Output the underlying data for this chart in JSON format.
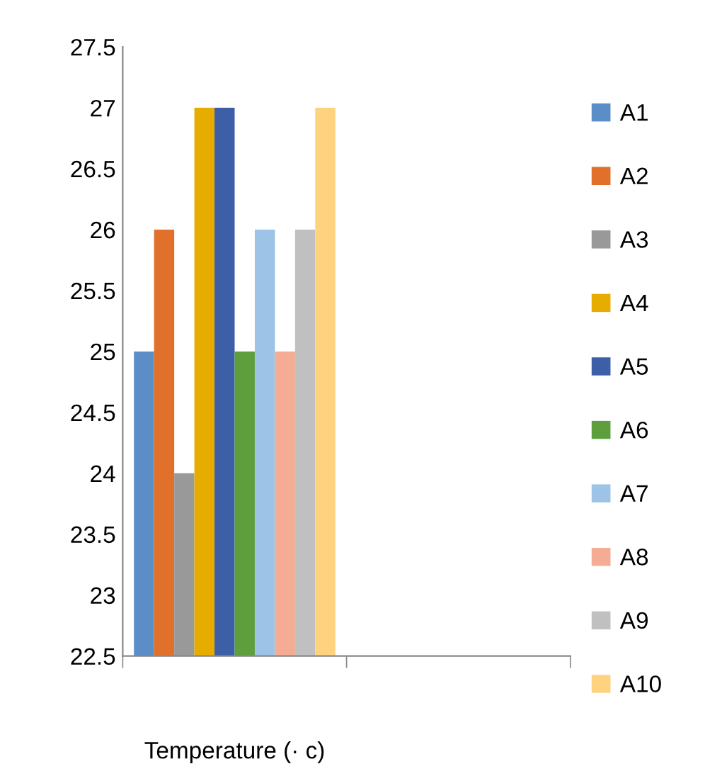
{
  "chart_data": {
    "type": "bar",
    "xlabel": "Temperature (· c)",
    "categories": [
      null,
      null
    ],
    "series": [
      {
        "name": "A1",
        "color": "#5b8ec6",
        "values": [
          25,
          null
        ]
      },
      {
        "name": "A2",
        "color": "#e0702a",
        "values": [
          26,
          null
        ]
      },
      {
        "name": "A3",
        "color": "#999999",
        "values": [
          24,
          null
        ]
      },
      {
        "name": "A4",
        "color": "#e6ac00",
        "values": [
          27,
          null
        ]
      },
      {
        "name": "A5",
        "color": "#3d5fa8",
        "values": [
          27,
          null
        ]
      },
      {
        "name": "A6",
        "color": "#5e9e3c",
        "values": [
          25,
          null
        ]
      },
      {
        "name": "A7",
        "color": "#9dc3e6",
        "values": [
          26,
          null
        ]
      },
      {
        "name": "A8",
        "color": "#f4ac94",
        "values": [
          25,
          null
        ]
      },
      {
        "name": "A9",
        "color": "#c0c0c0",
        "values": [
          26,
          null
        ]
      },
      {
        "name": "A10",
        "color": "#ffd280",
        "values": [
          27,
          null
        ]
      }
    ],
    "ylim": [
      22.5,
      27.5
    ],
    "yticks": [
      22.5,
      23,
      23.5,
      24,
      24.5,
      25,
      25.5,
      26,
      26.5,
      27,
      27.5
    ],
    "legend": "right"
  }
}
